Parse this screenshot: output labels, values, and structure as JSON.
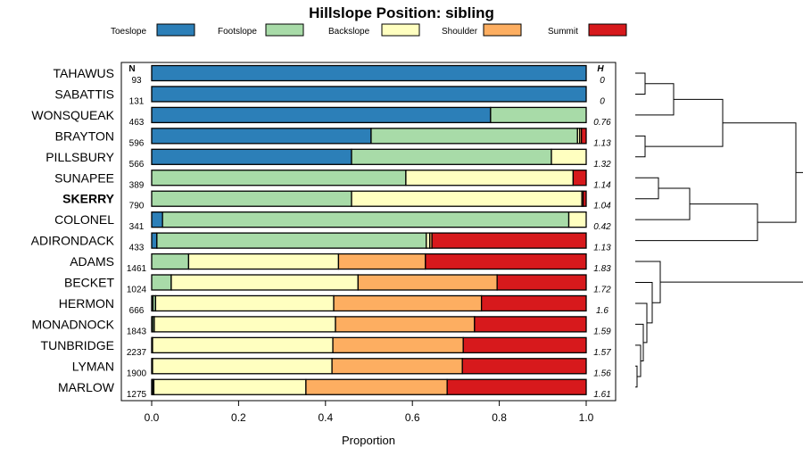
{
  "chart_data": {
    "type": "bar",
    "stacked": true,
    "orientation": "horizontal",
    "title": "Hillslope Position: sibling",
    "xlabel": "Proportion",
    "xlim": [
      0,
      1
    ],
    "x_ticks": [
      "0.0",
      "0.2",
      "0.4",
      "0.6",
      "0.8",
      "1.0"
    ],
    "n_header": "N",
    "h_header": "H",
    "highlight": "SKERRY",
    "legend_position": "top",
    "series": [
      {
        "name": "Toeslope",
        "color": "#2c7fb8"
      },
      {
        "name": "Footslope",
        "color": "#a8dba8"
      },
      {
        "name": "Backslope",
        "color": "#ffffc0"
      },
      {
        "name": "Shoulder",
        "color": "#fdae61"
      },
      {
        "name": "Summit",
        "color": "#d7191c"
      }
    ],
    "rows": [
      {
        "name": "TAHAWUS",
        "n": "93",
        "h": "0",
        "values": [
          1.0,
          0,
          0,
          0,
          0
        ]
      },
      {
        "name": "SABATTIS",
        "n": "131",
        "h": "0",
        "values": [
          1.0,
          0,
          0,
          0,
          0
        ]
      },
      {
        "name": "WONSQUEAK",
        "n": "463",
        "h": "0.76",
        "values": [
          0.78,
          0.22,
          0,
          0,
          0
        ]
      },
      {
        "name": "BRAYTON",
        "n": "596",
        "h": "1.13",
        "values": [
          0.505,
          0.475,
          0.005,
          0.004,
          0.011
        ]
      },
      {
        "name": "PILLSBURY",
        "n": "566",
        "h": "1.32",
        "values": [
          0.46,
          0.46,
          0.08,
          0,
          0
        ]
      },
      {
        "name": "SUNAPEE",
        "n": "389",
        "h": "1.14",
        "values": [
          0,
          0.585,
          0.385,
          0,
          0.03
        ]
      },
      {
        "name": "SKERRY",
        "n": "790",
        "h": "1.04",
        "values": [
          0,
          0.46,
          0.53,
          0.003,
          0.007
        ]
      },
      {
        "name": "COLONEL",
        "n": "341",
        "h": "0.42",
        "values": [
          0.025,
          0.935,
          0.04,
          0,
          0
        ]
      },
      {
        "name": "ADIRONDACK",
        "n": "433",
        "h": "1.13",
        "values": [
          0.012,
          0.62,
          0.008,
          0.005,
          0.355
        ]
      },
      {
        "name": "ADAMS",
        "n": "1461",
        "h": "1.83",
        "values": [
          0,
          0.085,
          0.345,
          0.2,
          0.37
        ]
      },
      {
        "name": "BECKET",
        "n": "1024",
        "h": "1.72",
        "values": [
          0,
          0.045,
          0.43,
          0.32,
          0.205
        ]
      },
      {
        "name": "HERMON",
        "n": "666",
        "h": "1.6",
        "values": [
          0.003,
          0.006,
          0.41,
          0.34,
          0.241
        ]
      },
      {
        "name": "MONADNOCK",
        "n": "1843",
        "h": "1.59",
        "values": [
          0.002,
          0.004,
          0.417,
          0.32,
          0.257
        ]
      },
      {
        "name": "TUNBRIDGE",
        "n": "2237",
        "h": "1.57",
        "values": [
          0,
          0.002,
          0.415,
          0.3,
          0.283
        ]
      },
      {
        "name": "LYMAN",
        "n": "1900",
        "h": "1.56",
        "values": [
          0,
          0.002,
          0.413,
          0.3,
          0.285
        ]
      },
      {
        "name": "MARLOW",
        "n": "1275",
        "h": "1.61",
        "values": [
          0.002,
          0.003,
          0.35,
          0.325,
          0.32
        ]
      }
    ],
    "dendrogram": {
      "type": "hierarchical clustering of rows (shown at right)",
      "clusters": [
        [
          "TAHAWUS",
          "SABATTIS",
          "WONSQUEAK",
          "BRAYTON",
          "PILLSBURY"
        ],
        [
          "SUNAPEE",
          "SKERRY",
          "COLONEL",
          "ADIRONDACK"
        ],
        [
          "ADAMS",
          "BECKET",
          "HERMON",
          "MONADNOCK",
          "TUNBRIDGE",
          "LYMAN",
          "MARLOW"
        ]
      ]
    }
  }
}
